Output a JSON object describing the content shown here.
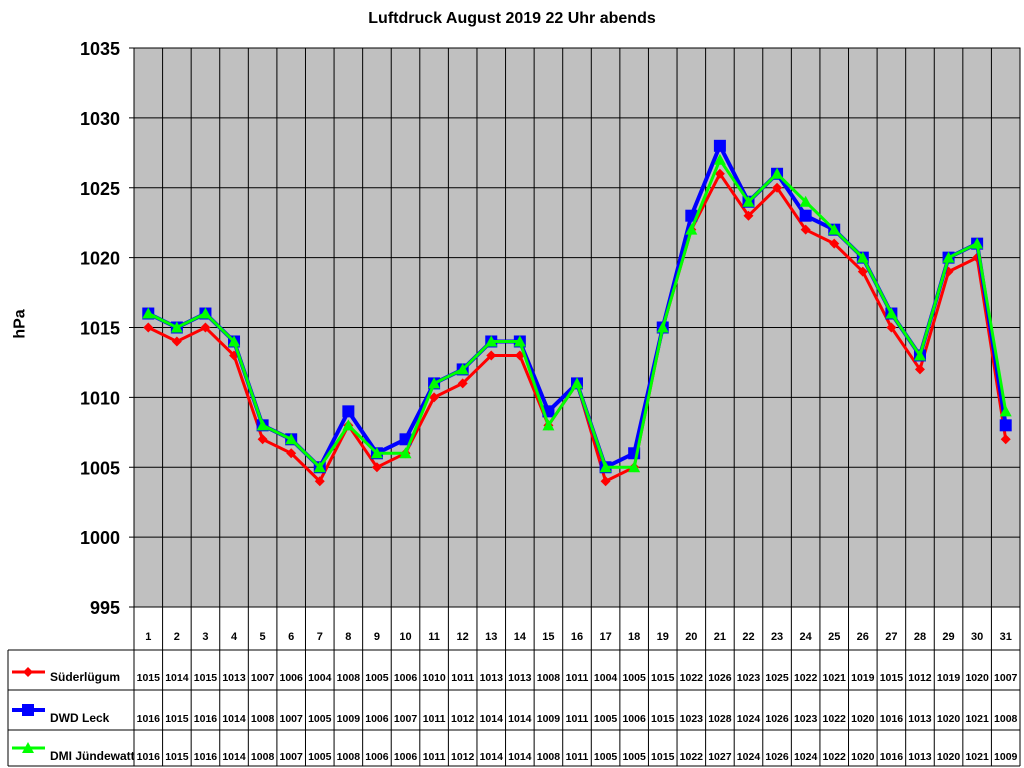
{
  "chart_data": {
    "type": "line",
    "title": "Luftdruck August 2019 22 Uhr abends",
    "ylabel": "hPa",
    "xlabel": "",
    "ylim": [
      995,
      1035
    ],
    "yticks": [
      995,
      1000,
      1005,
      1010,
      1015,
      1020,
      1025,
      1030,
      1035
    ],
    "grid": true,
    "legend": "data-table-left",
    "categories": [
      "1",
      "2",
      "3",
      "4",
      "5",
      "6",
      "7",
      "8",
      "9",
      "10",
      "11",
      "12",
      "13",
      "14",
      "15",
      "16",
      "17",
      "18",
      "19",
      "20",
      "21",
      "22",
      "23",
      "24",
      "25",
      "26",
      "27",
      "28",
      "29",
      "30",
      "31"
    ],
    "series": [
      {
        "name": "Süderlügum",
        "color": "#ff0000",
        "marker": "diamond",
        "values": [
          1015,
          1014,
          1015,
          1013,
          1007,
          1006,
          1004,
          1008,
          1005,
          1006,
          1010,
          1011,
          1013,
          1013,
          1008,
          1011,
          1004,
          1005,
          1015,
          1022,
          1026,
          1023,
          1025,
          1022,
          1021,
          1019,
          1015,
          1012,
          1019,
          1020,
          1007
        ]
      },
      {
        "name": "DWD Leck",
        "color": "#0000ff",
        "marker": "square",
        "values": [
          1016,
          1015,
          1016,
          1014,
          1008,
          1007,
          1005,
          1009,
          1006,
          1007,
          1011,
          1012,
          1014,
          1014,
          1009,
          1011,
          1005,
          1006,
          1015,
          1023,
          1028,
          1024,
          1026,
          1023,
          1022,
          1020,
          1016,
          1013,
          1020,
          1021,
          1008
        ]
      },
      {
        "name": "DMI Jündewatt",
        "color": "#00ff00",
        "marker": "triangle",
        "values": [
          1016,
          1015,
          1016,
          1014,
          1008,
          1007,
          1005,
          1008,
          1006,
          1006,
          1011,
          1012,
          1014,
          1014,
          1008,
          1011,
          1005,
          1005,
          1015,
          1022,
          1027,
          1024,
          1026,
          1024,
          1022,
          1020,
          1016,
          1013,
          1020,
          1021,
          1009
        ]
      }
    ],
    "plot_background": "#c0c0c0"
  }
}
